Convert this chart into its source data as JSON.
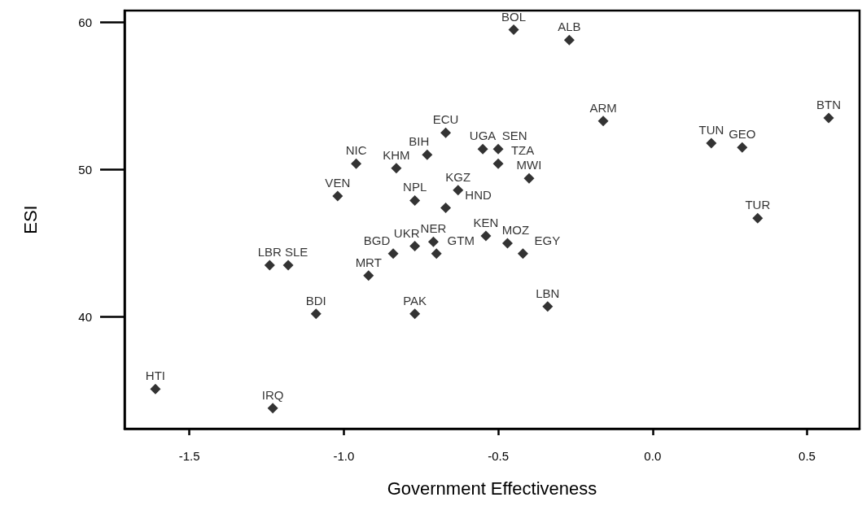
{
  "chart_data": {
    "type": "scatter",
    "xlabel": "Government Effectiveness",
    "ylabel": "ESI",
    "xlim": [
      -1.71,
      0.67
    ],
    "ylim": [
      32.4,
      60.8
    ],
    "xticks": [
      {
        "value": -1.5,
        "label": "-1.5"
      },
      {
        "value": -1,
        "label": "-1.0"
      },
      {
        "value": -0.5,
        "label": "-0.5"
      },
      {
        "value": 0,
        "label": "0.0"
      },
      {
        "value": 0.5,
        "label": "0.5"
      }
    ],
    "yticks": [
      40,
      50,
      60
    ],
    "marker": "diamond",
    "series": [
      {
        "color": "#000000",
        "x": [
          -0.45,
          -0.27,
          -0.67,
          -0.73,
          -0.55,
          -0.5,
          -0.5,
          -0.16,
          0.19,
          0.29,
          0.57,
          -0.96,
          -0.83,
          -1.02,
          -0.77,
          -0.63,
          -0.67,
          -0.4,
          -0.71,
          -0.77,
          -0.84,
          -0.7,
          -0.54,
          -0.47,
          -0.42,
          0.34,
          -1.24,
          -1.18,
          -0.92,
          -1.09,
          -0.77,
          -0.34,
          -1.61,
          -1.23
        ],
        "values": [
          59.5,
          58.8,
          52.5,
          51.0,
          51.4,
          51.4,
          50.4,
          53.3,
          51.8,
          51.5,
          53.5,
          50.4,
          50.1,
          48.2,
          47.9,
          48.6,
          47.4,
          49.4,
          45.1,
          44.8,
          44.3,
          44.3,
          45.5,
          45.0,
          44.3,
          46.7,
          43.5,
          43.5,
          42.8,
          40.2,
          40.2,
          40.7,
          35.1,
          33.8
        ]
      }
    ],
    "annotations": [
      {
        "text": "BOL",
        "x": -0.45,
        "y": 59.5
      },
      {
        "text": "ALB",
        "x": -0.27,
        "y": 58.8
      },
      {
        "text": "ECU",
        "x": -0.67,
        "y": 52.5
      },
      {
        "text": "BIH",
        "x": -0.73,
        "y": 51.0
      },
      {
        "text": "UGA",
        "x": -0.55,
        "y": 51.4
      },
      {
        "text": "SEN",
        "x": -0.5,
        "y": 51.4
      },
      {
        "text": "TZA",
        "x": -0.5,
        "y": 50.4
      },
      {
        "text": "ARM",
        "x": -0.16,
        "y": 53.3
      },
      {
        "text": "TUN",
        "x": 0.19,
        "y": 51.8
      },
      {
        "text": "GEO",
        "x": 0.29,
        "y": 51.5
      },
      {
        "text": "BTN",
        "x": 0.57,
        "y": 53.5
      },
      {
        "text": "NIC",
        "x": -0.96,
        "y": 50.4
      },
      {
        "text": "KHM",
        "x": -0.83,
        "y": 50.1
      },
      {
        "text": "VEN",
        "x": -1.02,
        "y": 48.2
      },
      {
        "text": "NPL",
        "x": -0.77,
        "y": 47.9
      },
      {
        "text": "KGZ",
        "x": -0.63,
        "y": 48.6
      },
      {
        "text": "HND",
        "x": -0.67,
        "y": 47.4
      },
      {
        "text": "MWI",
        "x": -0.4,
        "y": 49.4
      },
      {
        "text": "NER",
        "x": -0.71,
        "y": 45.1
      },
      {
        "text": "UKR",
        "x": -0.77,
        "y": 44.8
      },
      {
        "text": "BGD",
        "x": -0.84,
        "y": 44.3
      },
      {
        "text": "GTM",
        "x": -0.7,
        "y": 44.3
      },
      {
        "text": "KEN",
        "x": -0.54,
        "y": 45.5
      },
      {
        "text": "MOZ",
        "x": -0.47,
        "y": 45.0
      },
      {
        "text": "EGY",
        "x": -0.42,
        "y": 44.3
      },
      {
        "text": "TUR",
        "x": 0.34,
        "y": 46.7
      },
      {
        "text": "LBR",
        "x": -1.24,
        "y": 43.5
      },
      {
        "text": "SLE",
        "x": -1.18,
        "y": 43.5
      },
      {
        "text": "MRT",
        "x": -0.92,
        "y": 42.8
      },
      {
        "text": "BDI",
        "x": -1.09,
        "y": 40.2
      },
      {
        "text": "PAK",
        "x": -0.77,
        "y": 40.2
      },
      {
        "text": "LBN",
        "x": -0.34,
        "y": 40.7
      },
      {
        "text": "HTI",
        "x": -1.61,
        "y": 35.1
      },
      {
        "text": "IRQ",
        "x": -1.23,
        "y": 33.8
      }
    ]
  }
}
